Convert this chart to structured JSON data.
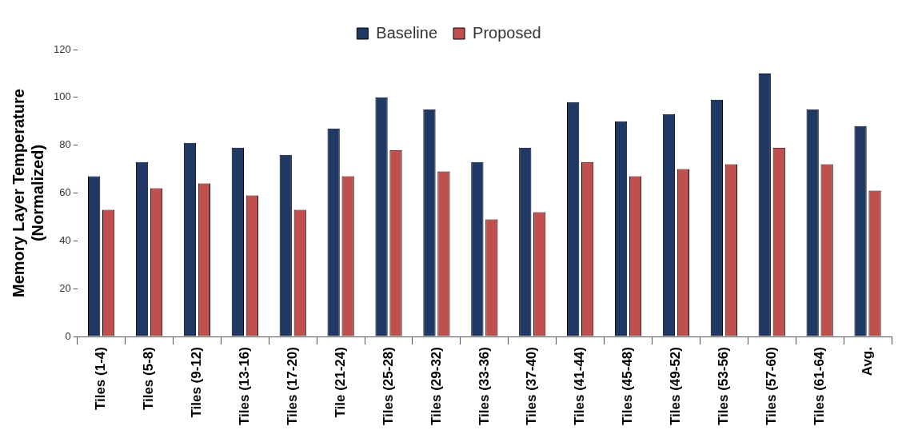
{
  "chart_data": {
    "type": "bar",
    "ylabel": "Memory Layer Temperature (Normalized)",
    "categories": [
      "Tiles (1-4)",
      "Tiles (5-8)",
      "Tiles (9-12)",
      "Tiles (13-16)",
      "Tiles (17-20)",
      "Tile (21-24)",
      "Tiles (25-28)",
      "Tiles (29-32)",
      "Tiles (33-36)",
      "Tiles (37-40)",
      "Tiles (41-44)",
      "Tiles (45-48)",
      "Tiles (49-52)",
      "Tiles (53-56)",
      "Tiles (57-60)",
      "Tiles (61-64)",
      "Avg."
    ],
    "series": [
      {
        "name": "Baseline",
        "color": "#1f3864",
        "values": [
          67,
          73,
          81,
          79,
          76,
          87,
          100,
          95,
          73,
          79,
          98,
          90,
          93,
          99,
          110,
          95,
          88
        ]
      },
      {
        "name": "Proposed",
        "color": "#c0504d",
        "values": [
          53,
          62,
          64,
          59,
          53,
          67,
          78,
          69,
          49,
          52,
          73,
          67,
          70,
          72,
          79,
          72,
          61
        ]
      }
    ],
    "ylim": [
      0,
      120
    ],
    "yticks": [
      0,
      20,
      40,
      60,
      80,
      100,
      120
    ],
    "grid": false,
    "legend": "top"
  }
}
